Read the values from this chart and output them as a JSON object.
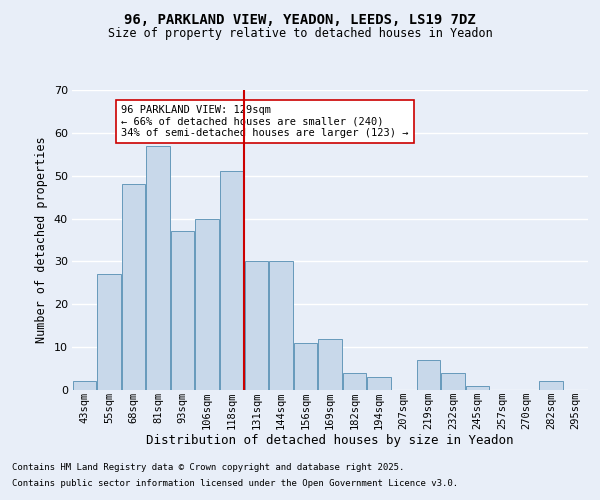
{
  "title1": "96, PARKLAND VIEW, YEADON, LEEDS, LS19 7DZ",
  "title2": "Size of property relative to detached houses in Yeadon",
  "xlabel": "Distribution of detached houses by size in Yeadon",
  "ylabel": "Number of detached properties",
  "categories": [
    "43sqm",
    "55sqm",
    "68sqm",
    "81sqm",
    "93sqm",
    "106sqm",
    "118sqm",
    "131sqm",
    "144sqm",
    "156sqm",
    "169sqm",
    "182sqm",
    "194sqm",
    "207sqm",
    "219sqm",
    "232sqm",
    "245sqm",
    "257sqm",
    "270sqm",
    "282sqm",
    "295sqm"
  ],
  "values": [
    2,
    27,
    48,
    57,
    37,
    40,
    51,
    30,
    30,
    11,
    12,
    4,
    3,
    0,
    7,
    4,
    1,
    0,
    0,
    2,
    0
  ],
  "bar_color": "#c8d8ea",
  "bar_edge_color": "#6699bb",
  "vline_index": 7,
  "vline_color": "#cc0000",
  "annotation_text": "96 PARKLAND VIEW: 129sqm\n← 66% of detached houses are smaller (240)\n34% of semi-detached houses are larger (123) →",
  "annotation_box_facecolor": "#ffffff",
  "annotation_box_edgecolor": "#cc0000",
  "ylim": [
    0,
    70
  ],
  "yticks": [
    0,
    10,
    20,
    30,
    40,
    50,
    60,
    70
  ],
  "background_color": "#e8eef8",
  "grid_color": "#ffffff",
  "footer1": "Contains HM Land Registry data © Crown copyright and database right 2025.",
  "footer2": "Contains public sector information licensed under the Open Government Licence v3.0."
}
